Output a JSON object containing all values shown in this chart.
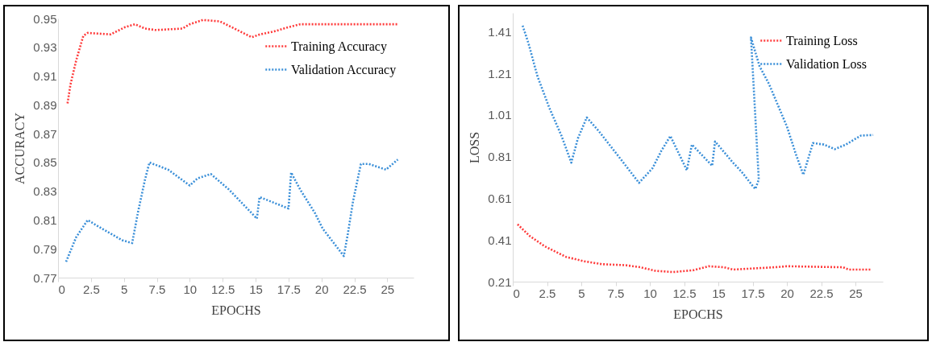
{
  "chart_data": [
    {
      "type": "line",
      "xlabel": "EPOCHS",
      "ylabel": "ACCURACY",
      "xlim": [
        0,
        27
      ],
      "ylim": [
        0.77,
        0.95
      ],
      "xticks": [
        0,
        2.5,
        5,
        7.5,
        10,
        12.5,
        15,
        17.5,
        20,
        22.5,
        25
      ],
      "yticks": [
        0.77,
        0.79,
        0.81,
        0.83,
        0.85,
        0.87,
        0.89,
        0.91,
        0.93,
        0.95
      ],
      "legend": "top right",
      "line_style": "dotted",
      "series": [
        {
          "name": "Training Accuracy",
          "color": "#ff3b3b",
          "x": [
            0.72,
            0.94,
            1.38,
            1.92,
            2.25,
            4.0,
            5.09,
            5.85,
            6.6,
            7.4,
            9.45,
            10.0,
            11.0,
            12.3,
            13.4,
            14.7,
            15.35,
            16.4,
            17.5,
            18.4,
            25.8
          ],
          "values": [
            0.891,
            0.904,
            0.921,
            0.938,
            0.94,
            0.939,
            0.944,
            0.946,
            0.943,
            0.942,
            0.943,
            0.946,
            0.949,
            0.948,
            0.943,
            0.937,
            0.939,
            0.941,
            0.944,
            0.946,
            0.946
          ]
        },
        {
          "name": "Validation Accuracy",
          "color": "#3a8fd8",
          "x": [
            0.61,
            1.37,
            2.25,
            3.34,
            4.86,
            5.63,
            6.06,
            6.6,
            6.94,
            8.36,
            10.0,
            10.6,
            11.6,
            13.0,
            15.1,
            15.3,
            17.5,
            17.7,
            18.4,
            19.5,
            20.1,
            21.7,
            22.0,
            22.4,
            23.0,
            23.6,
            24.9,
            25.8
          ],
          "values": [
            0.781,
            0.798,
            0.81,
            0.804,
            0.796,
            0.794,
            0.815,
            0.838,
            0.85,
            0.845,
            0.834,
            0.839,
            0.842,
            0.831,
            0.811,
            0.826,
            0.818,
            0.843,
            0.831,
            0.815,
            0.804,
            0.785,
            0.8,
            0.823,
            0.849,
            0.849,
            0.845,
            0.852
          ]
        }
      ]
    },
    {
      "type": "line",
      "xlabel": "EPOCHS",
      "ylabel": "LOSS",
      "xlim": [
        0,
        27
      ],
      "ylim": [
        0.21,
        1.5
      ],
      "xticks": [
        0,
        2.5,
        5,
        7.5,
        10,
        12.5,
        15,
        17.5,
        20,
        22.5,
        25
      ],
      "yticks": [
        0.21,
        0.41,
        0.61,
        0.81,
        1.01,
        1.21,
        1.41
      ],
      "legend": "top right",
      "line_style": "dotted",
      "series": [
        {
          "name": "Training Loss",
          "color": "#ff3b3b",
          "x": [
            0.35,
            1.26,
            2.35,
            3.88,
            5.18,
            6.49,
            8.23,
            9.32,
            10.4,
            11.7,
            13.2,
            14.3,
            15.4,
            16.07,
            19.1,
            20.0,
            24.1,
            24.5,
            26.1
          ],
          "values": [
            0.485,
            0.428,
            0.379,
            0.329,
            0.308,
            0.294,
            0.289,
            0.279,
            0.262,
            0.256,
            0.265,
            0.284,
            0.279,
            0.268,
            0.279,
            0.284,
            0.279,
            0.268,
            0.268
          ]
        },
        {
          "name": "Validation Loss",
          "color": "#3a8fd8",
          "x": [
            0.72,
            1.15,
            1.81,
            2.68,
            3.55,
            4.27,
            4.75,
            5.4,
            6.27,
            7.9,
            9.21,
            10.2,
            10.85,
            11.5,
            12.7,
            13.07,
            14.55,
            14.76,
            16.07,
            16.7,
            17.5,
            17.7,
            17.95,
            17.38,
            18.0,
            18.7,
            20.0,
            20.64,
            21.2,
            21.9,
            22.7,
            23.5,
            24.3,
            25.4,
            26.3
          ],
          "values": [
            1.439,
            1.353,
            1.194,
            1.042,
            0.911,
            0.781,
            0.897,
            0.998,
            0.933,
            0.796,
            0.684,
            0.755,
            0.839,
            0.909,
            0.745,
            0.868,
            0.766,
            0.883,
            0.781,
            0.737,
            0.67,
            0.655,
            0.7,
            1.382,
            1.245,
            1.158,
            0.955,
            0.825,
            0.723,
            0.875,
            0.868,
            0.846,
            0.868,
            0.911,
            0.914
          ]
        }
      ]
    }
  ]
}
